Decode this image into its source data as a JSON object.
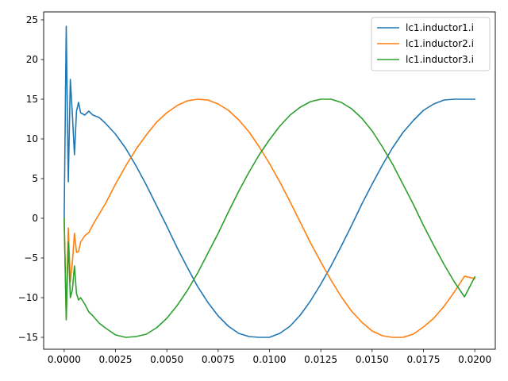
{
  "chart_data": {
    "type": "line",
    "title": "",
    "xlabel": "",
    "ylabel": "",
    "xlim": [
      -0.001,
      0.021
    ],
    "ylim": [
      -16.5,
      26.0
    ],
    "xticks": [
      {
        "value": 0.0,
        "label": "0.0000"
      },
      {
        "value": 0.0025,
        "label": "0.0025"
      },
      {
        "value": 0.005,
        "label": "0.0050"
      },
      {
        "value": 0.0075,
        "label": "0.0075"
      },
      {
        "value": 0.01,
        "label": "0.0100"
      },
      {
        "value": 0.0125,
        "label": "0.0125"
      },
      {
        "value": 0.015,
        "label": "0.0150"
      },
      {
        "value": 0.0175,
        "label": "0.0175"
      },
      {
        "value": 0.02,
        "label": "0.0200"
      }
    ],
    "yticks": [
      {
        "value": -15,
        "label": "−15"
      },
      {
        "value": -10,
        "label": "−10"
      },
      {
        "value": -5,
        "label": "−5"
      },
      {
        "value": 0,
        "label": "0"
      },
      {
        "value": 5,
        "label": "5"
      },
      {
        "value": 10,
        "label": "10"
      },
      {
        "value": 15,
        "label": "15"
      },
      {
        "value": 20,
        "label": "20"
      },
      {
        "value": 25,
        "label": "25"
      }
    ],
    "grid": false,
    "legend_position": "top-right",
    "series": [
      {
        "name": "lc1.inductor1.i",
        "color": "#1f77b4",
        "points": [
          [
            0,
            0
          ],
          [
            0.0001,
            24.2
          ],
          [
            0.0002,
            4.6
          ],
          [
            0.0003,
            17.5
          ],
          [
            0.0004,
            13.0
          ],
          [
            0.0005,
            8.0
          ],
          [
            0.0006,
            13.5
          ],
          [
            0.0007,
            14.6
          ],
          [
            0.0008,
            13.3
          ],
          [
            0.001,
            13.0
          ],
          [
            0.0012,
            13.5
          ],
          [
            0.0014,
            13.0
          ],
          [
            0.0017,
            12.7
          ],
          [
            0.002,
            12.0
          ],
          [
            0.0025,
            10.6
          ],
          [
            0.003,
            8.8
          ],
          [
            0.0035,
            6.6
          ],
          [
            0.004,
            4.2
          ],
          [
            0.0045,
            1.6
          ],
          [
            0.005,
            -1.0
          ],
          [
            0.0055,
            -3.7
          ],
          [
            0.006,
            -6.2
          ],
          [
            0.0065,
            -8.6
          ],
          [
            0.007,
            -10.6
          ],
          [
            0.0075,
            -12.3
          ],
          [
            0.008,
            -13.6
          ],
          [
            0.0085,
            -14.5
          ],
          [
            0.009,
            -14.9
          ],
          [
            0.0095,
            -15.0
          ],
          [
            0.01,
            -15.0
          ],
          [
            0.0105,
            -14.5
          ],
          [
            0.011,
            -13.6
          ],
          [
            0.0115,
            -12.2
          ],
          [
            0.012,
            -10.4
          ],
          [
            0.0125,
            -8.3
          ],
          [
            0.013,
            -6.0
          ],
          [
            0.0135,
            -3.5
          ],
          [
            0.014,
            -0.9
          ],
          [
            0.0145,
            1.8
          ],
          [
            0.015,
            4.3
          ],
          [
            0.0155,
            6.7
          ],
          [
            0.016,
            8.9
          ],
          [
            0.0165,
            10.8
          ],
          [
            0.017,
            12.3
          ],
          [
            0.0175,
            13.6
          ],
          [
            0.018,
            14.4
          ],
          [
            0.0185,
            14.9
          ],
          [
            0.019,
            15.0
          ],
          [
            0.0195,
            15.0
          ],
          [
            0.02,
            15.0
          ]
        ]
      },
      {
        "name": "lc1.inductor2.i",
        "color": "#ff7f0e",
        "points": [
          [
            0,
            0
          ],
          [
            0.0001,
            -12.5
          ],
          [
            0.0002,
            -1.2
          ],
          [
            0.0003,
            -8.0
          ],
          [
            0.0004,
            -5.5
          ],
          [
            0.0005,
            -1.9
          ],
          [
            0.0006,
            -4.3
          ],
          [
            0.0007,
            -4.2
          ],
          [
            0.0008,
            -3.0
          ],
          [
            0.001,
            -2.2
          ],
          [
            0.0012,
            -1.8
          ],
          [
            0.0014,
            -0.8
          ],
          [
            0.0017,
            0.5
          ],
          [
            0.002,
            1.8
          ],
          [
            0.0025,
            4.3
          ],
          [
            0.003,
            6.6
          ],
          [
            0.0035,
            8.7
          ],
          [
            0.004,
            10.5
          ],
          [
            0.0045,
            12.1
          ],
          [
            0.005,
            13.3
          ],
          [
            0.0055,
            14.2
          ],
          [
            0.006,
            14.8
          ],
          [
            0.0065,
            15.0
          ],
          [
            0.007,
            14.9
          ],
          [
            0.0075,
            14.4
          ],
          [
            0.008,
            13.6
          ],
          [
            0.0085,
            12.4
          ],
          [
            0.009,
            10.9
          ],
          [
            0.0095,
            9.0
          ],
          [
            0.01,
            6.9
          ],
          [
            0.0105,
            4.6
          ],
          [
            0.011,
            2.1
          ],
          [
            0.0115,
            -0.5
          ],
          [
            0.012,
            -3.1
          ],
          [
            0.0125,
            -5.5
          ],
          [
            0.013,
            -7.8
          ],
          [
            0.0135,
            -9.9
          ],
          [
            0.014,
            -11.7
          ],
          [
            0.0145,
            -13.1
          ],
          [
            0.015,
            -14.2
          ],
          [
            0.0155,
            -14.8
          ],
          [
            0.016,
            -15.0
          ],
          [
            0.0165,
            -15.0
          ],
          [
            0.017,
            -14.6
          ],
          [
            0.0175,
            -13.7
          ],
          [
            0.018,
            -12.6
          ],
          [
            0.0185,
            -11.1
          ],
          [
            0.019,
            -9.3
          ],
          [
            0.0195,
            -7.3
          ],
          [
            0.02,
            -7.6
          ]
        ]
      },
      {
        "name": "lc1.inductor3.i",
        "color": "#2ca02c",
        "points": [
          [
            0,
            0
          ],
          [
            0.0001,
            -12.8
          ],
          [
            0.0002,
            -3.0
          ],
          [
            0.0003,
            -10.0
          ],
          [
            0.0004,
            -9.0
          ],
          [
            0.0005,
            -6.0
          ],
          [
            0.0006,
            -9.5
          ],
          [
            0.0007,
            -10.3
          ],
          [
            0.0008,
            -10.0
          ],
          [
            0.001,
            -10.8
          ],
          [
            0.0012,
            -11.8
          ],
          [
            0.0014,
            -12.3
          ],
          [
            0.0017,
            -13.2
          ],
          [
            0.002,
            -13.8
          ],
          [
            0.0025,
            -14.7
          ],
          [
            0.003,
            -15.0
          ],
          [
            0.0035,
            -14.9
          ],
          [
            0.004,
            -14.6
          ],
          [
            0.0045,
            -13.8
          ],
          [
            0.005,
            -12.6
          ],
          [
            0.0055,
            -11.0
          ],
          [
            0.006,
            -9.1
          ],
          [
            0.0065,
            -6.9
          ],
          [
            0.007,
            -4.4
          ],
          [
            0.0075,
            -1.9
          ],
          [
            0.008,
            0.8
          ],
          [
            0.0085,
            3.4
          ],
          [
            0.009,
            5.8
          ],
          [
            0.0095,
            8.0
          ],
          [
            0.01,
            9.9
          ],
          [
            0.0105,
            11.6
          ],
          [
            0.011,
            13.0
          ],
          [
            0.0115,
            14.0
          ],
          [
            0.012,
            14.7
          ],
          [
            0.0125,
            15.0
          ],
          [
            0.013,
            15.0
          ],
          [
            0.0135,
            14.6
          ],
          [
            0.014,
            13.8
          ],
          [
            0.0145,
            12.6
          ],
          [
            0.015,
            11.0
          ],
          [
            0.0155,
            9.0
          ],
          [
            0.016,
            6.8
          ],
          [
            0.0165,
            4.3
          ],
          [
            0.017,
            1.8
          ],
          [
            0.0175,
            -0.9
          ],
          [
            0.018,
            -3.4
          ],
          [
            0.0185,
            -5.8
          ],
          [
            0.019,
            -8.0
          ],
          [
            0.0195,
            -9.9
          ],
          [
            0.02,
            -7.4
          ]
        ]
      }
    ]
  }
}
